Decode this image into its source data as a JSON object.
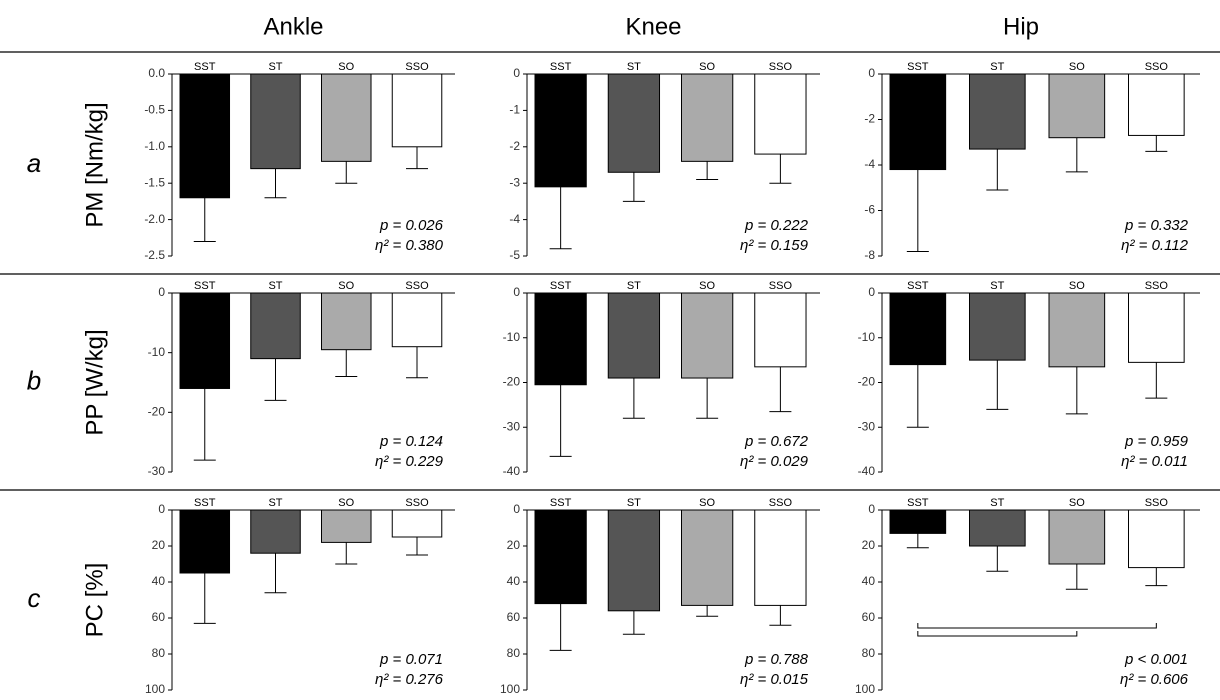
{
  "chart_data": [
    {
      "type": "bar",
      "title": "Ankle",
      "panel_label": "a",
      "ylabel": "PM [Nm/kg]",
      "categories": [
        "SST",
        "ST",
        "SO",
        "SSO"
      ],
      "colors": [
        "#000000",
        "#555555",
        "#aaaaaa",
        "#ffffff"
      ],
      "values": [
        -1.7,
        -1.3,
        -1.2,
        -1.0
      ],
      "errors": [
        0.6,
        0.4,
        0.3,
        0.3
      ],
      "ylim": [
        -2.5,
        0
      ],
      "yticks": [
        {
          "value": 0,
          "label": "0.0"
        },
        -0.5,
        {
          "value": -1,
          "label": "-1.0"
        },
        -1.5,
        {
          "value": -2,
          "label": "-2.0"
        },
        -2.5
      ],
      "annotations": [
        "p = 0.026",
        "η² = 0.380"
      ]
    },
    {
      "type": "bar",
      "title": "Knee",
      "categories": [
        "SST",
        "ST",
        "SO",
        "SSO"
      ],
      "colors": [
        "#000000",
        "#555555",
        "#aaaaaa",
        "#ffffff"
      ],
      "values": [
        -3.1,
        -2.7,
        -2.4,
        -2.2
      ],
      "errors": [
        1.7,
        0.8,
        0.5,
        0.8
      ],
      "ylim": [
        -5,
        0
      ],
      "yticks": [
        0,
        -1,
        -2,
        -3,
        -4,
        -5
      ],
      "annotations": [
        "p = 0.222",
        "η² = 0.159"
      ]
    },
    {
      "type": "bar",
      "title": "Hip",
      "categories": [
        "SST",
        "ST",
        "SO",
        "SSO"
      ],
      "colors": [
        "#000000",
        "#555555",
        "#aaaaaa",
        "#ffffff"
      ],
      "values": [
        -4.2,
        -3.3,
        -2.8,
        -2.7
      ],
      "errors": [
        3.6,
        1.8,
        1.5,
        0.7
      ],
      "ylim": [
        -8,
        0
      ],
      "yticks": [
        0,
        -2,
        -4,
        -6,
        -8
      ],
      "annotations": [
        "p = 0.332",
        "η² = 0.112"
      ]
    },
    {
      "type": "bar",
      "panel_label": "b",
      "ylabel": "PP [W/kg]",
      "categories": [
        "SST",
        "ST",
        "SO",
        "SSO"
      ],
      "colors": [
        "#000000",
        "#555555",
        "#aaaaaa",
        "#ffffff"
      ],
      "values": [
        -16,
        -11,
        -9.5,
        -9
      ],
      "errors": [
        12,
        7,
        4.5,
        5.2
      ],
      "ylim": [
        -30,
        0
      ],
      "yticks": [
        0,
        -10,
        -20,
        -30
      ],
      "annotations": [
        "p = 0.124",
        "η² = 0.229"
      ]
    },
    {
      "type": "bar",
      "categories": [
        "SST",
        "ST",
        "SO",
        "SSO"
      ],
      "colors": [
        "#000000",
        "#555555",
        "#aaaaaa",
        "#ffffff"
      ],
      "values": [
        -20.5,
        -19,
        -19,
        -16.5
      ],
      "errors": [
        16,
        9,
        9,
        10
      ],
      "ylim": [
        -40,
        0
      ],
      "yticks": [
        0,
        -10,
        -20,
        -30,
        -40
      ],
      "annotations": [
        "p = 0.672",
        "η² = 0.029"
      ]
    },
    {
      "type": "bar",
      "categories": [
        "SST",
        "ST",
        "SO",
        "SSO"
      ],
      "colors": [
        "#000000",
        "#555555",
        "#aaaaaa",
        "#ffffff"
      ],
      "values": [
        -16,
        -15,
        -16.5,
        -15.5
      ],
      "errors": [
        14,
        11,
        10.5,
        8
      ],
      "ylim": [
        -40,
        0
      ],
      "yticks": [
        0,
        -10,
        -20,
        -30,
        -40
      ],
      "annotations": [
        "p = 0.959",
        "η² = 0.011"
      ]
    },
    {
      "type": "bar",
      "panel_label": "c",
      "ylabel": "PC [%]",
      "inverted": true,
      "categories": [
        "SST",
        "ST",
        "SO",
        "SSO"
      ],
      "colors": [
        "#000000",
        "#555555",
        "#aaaaaa",
        "#ffffff"
      ],
      "values": [
        35,
        24,
        18,
        15
      ],
      "errors": [
        28,
        22,
        12,
        10
      ],
      "ylim": [
        0,
        100
      ],
      "yticks": [
        0,
        20,
        40,
        60,
        80,
        100
      ],
      "annotations": [
        "p = 0.071",
        "η² = 0.276"
      ]
    },
    {
      "type": "bar",
      "inverted": true,
      "categories": [
        "SST",
        "ST",
        "SO",
        "SSO"
      ],
      "colors": [
        "#000000",
        "#555555",
        "#aaaaaa",
        "#ffffff"
      ],
      "values": [
        52,
        56,
        53,
        53
      ],
      "errors": [
        26,
        13,
        6,
        11
      ],
      "ylim": [
        0,
        100
      ],
      "yticks": [
        0,
        20,
        40,
        60,
        80,
        100
      ],
      "annotations": [
        "p = 0.788",
        "η² = 0.015"
      ]
    },
    {
      "type": "bar",
      "inverted": true,
      "categories": [
        "SST",
        "ST",
        "SO",
        "SSO"
      ],
      "colors": [
        "#000000",
        "#555555",
        "#aaaaaa",
        "#ffffff"
      ],
      "values": [
        13,
        20,
        30,
        32
      ],
      "errors": [
        8,
        14,
        14,
        10
      ],
      "ylim": [
        0,
        100
      ],
      "yticks": [
        0,
        20,
        40,
        60,
        80,
        100
      ],
      "brackets": [
        [
          "SST",
          "SSO"
        ],
        [
          "SST",
          "SO"
        ]
      ],
      "annotations": [
        "p < 0.001",
        "η² = 0.606"
      ]
    }
  ]
}
